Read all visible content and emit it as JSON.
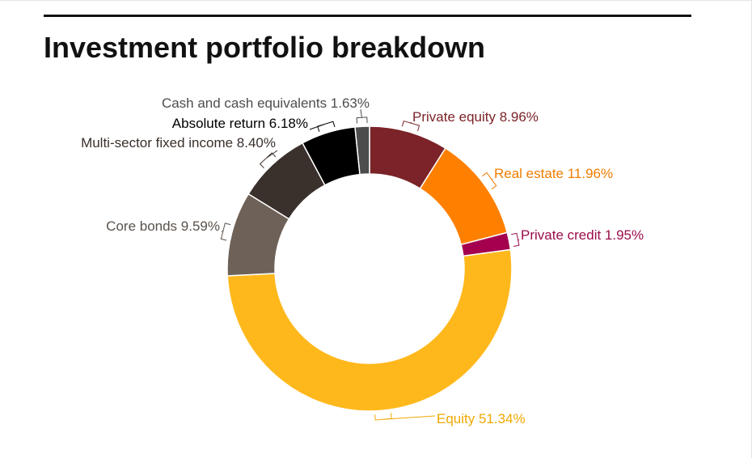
{
  "title": "Investment portfolio breakdown",
  "chart_data": {
    "type": "pie",
    "donut": true,
    "title": "Investment portfolio breakdown",
    "slices": [
      {
        "label": "Private equity",
        "value": 8.96,
        "display": "Private equity 8.96%",
        "color": "#7b2328",
        "text_color": "#7b2328"
      },
      {
        "label": "Real estate",
        "value": 11.96,
        "display": "Real estate 11.96%",
        "color": "#ff8000",
        "text_color": "#ef7d00"
      },
      {
        "label": "Private credit",
        "value": 1.95,
        "display": "Private credit 1.95%",
        "color": "#a5004f",
        "text_color": "#9a0d4c"
      },
      {
        "label": "Equity",
        "value": 51.34,
        "display": "Equity 51.34%",
        "color": "#ffb81c",
        "text_color": "#efa800"
      },
      {
        "label": "Core bonds",
        "value": 9.59,
        "display": "Core bonds 9.59%",
        "color": "#6e6157",
        "text_color": "#5a514a"
      },
      {
        "label": "Multi-sector fixed income",
        "value": 8.4,
        "display": "Multi-sector fixed income 8.40%",
        "color": "#3a302c",
        "text_color": "#3a302c"
      },
      {
        "label": "Absolute return",
        "value": 6.18,
        "display": "Absolute return 6.18%",
        "color": "#000000",
        "text_color": "#000000"
      },
      {
        "label": "Cash and cash equivalents",
        "value": 1.63,
        "display": "Cash and cash equivalents 1.63%",
        "color": "#4d4d4d",
        "text_color": "#4d4d4d"
      }
    ]
  }
}
